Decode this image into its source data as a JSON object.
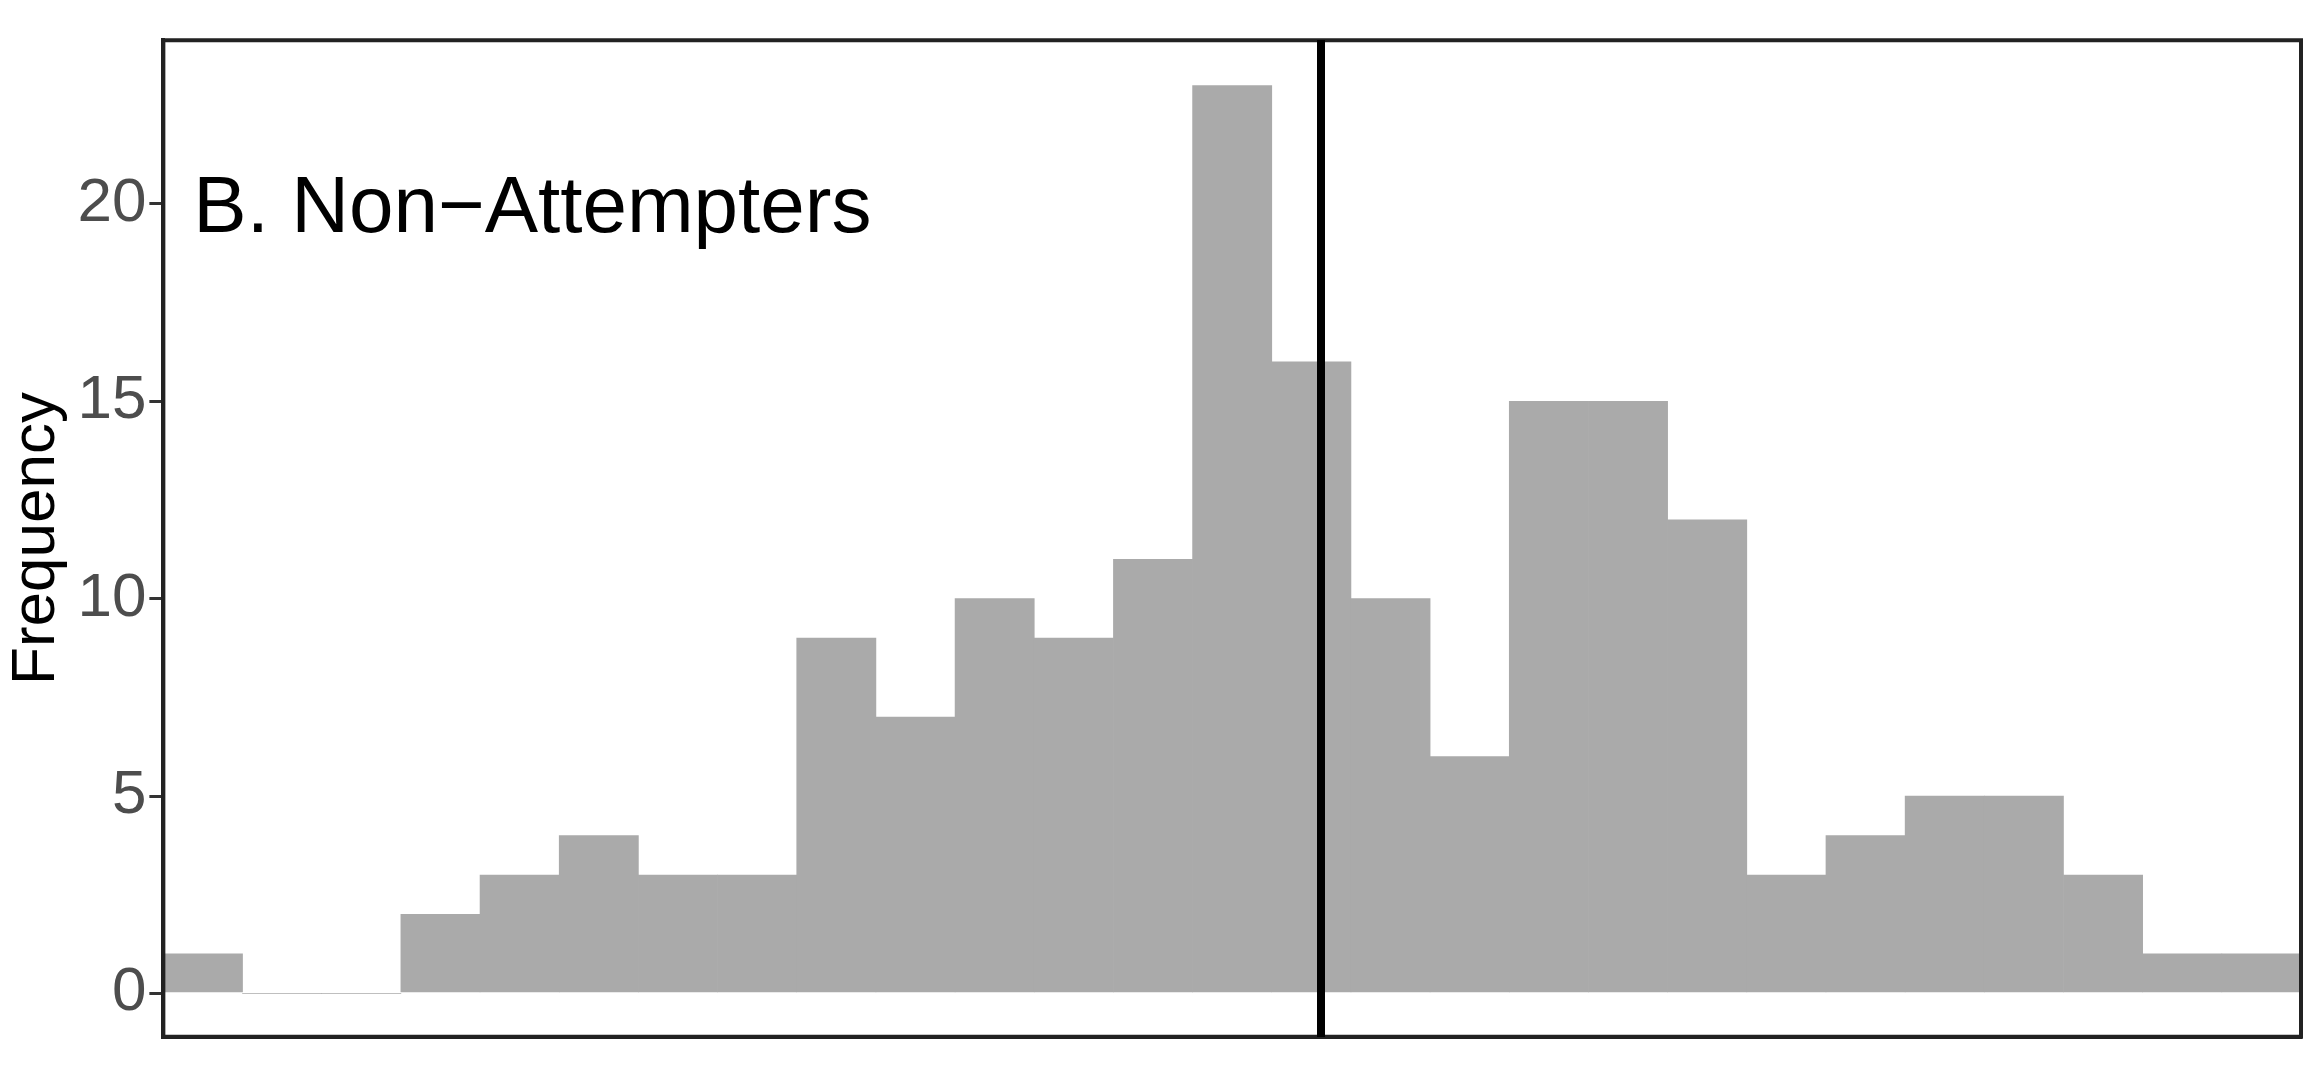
{
  "chart_data": {
    "type": "bar",
    "ylabel": "Frequency",
    "annotations": [
      "B. Non−Attempters"
    ],
    "categories": [
      null,
      null,
      null,
      null,
      null,
      null,
      null,
      null,
      null,
      null,
      null,
      null,
      null,
      null,
      null,
      null,
      null,
      null,
      null,
      null,
      null,
      null,
      null,
      null,
      null,
      null,
      null
    ],
    "values": [
      1,
      0,
      0,
      2,
      3,
      4,
      3,
      3,
      9,
      7,
      10,
      9,
      11,
      23,
      16,
      10,
      6,
      15,
      15,
      12,
      3,
      4,
      5,
      5,
      3,
      1,
      1
    ],
    "color": "#aaaaaa",
    "ylim": [
      -1.1,
      24.15
    ],
    "yticks": [
      0,
      5,
      10,
      15,
      20
    ],
    "grid": false,
    "tick_labels": "y",
    "legend": false
  }
}
